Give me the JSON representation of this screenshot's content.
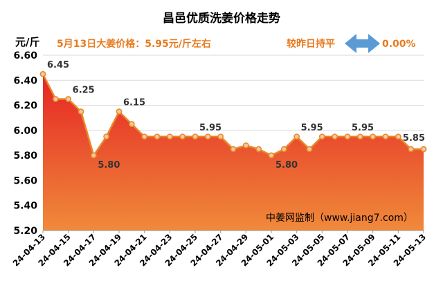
{
  "chart_data": {
    "type": "area",
    "title": "昌邑优质洗姜价格走势",
    "ylabel": "元/斤",
    "ylim": [
      5.2,
      6.6
    ],
    "yticks": [
      "5.20",
      "5.40",
      "5.60",
      "5.80",
      "6.00",
      "6.20",
      "6.40",
      "6.60"
    ],
    "x": [
      "24-04-13",
      "24-04-14",
      "24-04-15",
      "24-04-16",
      "24-04-17",
      "24-04-18",
      "24-04-19",
      "24-04-20",
      "24-04-21",
      "24-04-22",
      "24-04-23",
      "24-04-24",
      "24-04-25",
      "24-04-26",
      "24-04-27",
      "24-04-28",
      "24-04-29",
      "24-04-30",
      "24-05-01",
      "24-05-02",
      "24-05-03",
      "24-05-04",
      "24-05-05",
      "24-05-06",
      "24-05-07",
      "24-05-08",
      "24-05-09",
      "24-05-10",
      "24-05-11",
      "24-05-12",
      "24-05-13"
    ],
    "xtick_labels": [
      "24-04-13",
      "24-04-15",
      "24-04-17",
      "24-04-19",
      "24-04-21",
      "24-04-23",
      "24-04-25",
      "24-04-27",
      "24-04-29",
      "24-05-01",
      "24-05-03",
      "24-05-05",
      "24-05-07",
      "24-05-09",
      "24-05-11",
      "24-05-13"
    ],
    "values": [
      6.45,
      6.25,
      6.25,
      6.15,
      5.8,
      5.95,
      6.15,
      6.05,
      5.95,
      5.95,
      5.95,
      5.95,
      5.95,
      5.95,
      5.95,
      5.85,
      5.88,
      5.85,
      5.8,
      5.85,
      5.95,
      5.85,
      5.95,
      5.95,
      5.95,
      5.95,
      5.95,
      5.95,
      5.95,
      5.85,
      5.85
    ],
    "data_labels": [
      {
        "index": 0,
        "text": "6.45"
      },
      {
        "index": 2,
        "text": "6.25"
      },
      {
        "index": 4,
        "text": "5.80"
      },
      {
        "index": 6,
        "text": "6.15"
      },
      {
        "index": 12,
        "text": "5.95"
      },
      {
        "index": 18,
        "text": "5.80"
      },
      {
        "index": 20,
        "text": "5.95"
      },
      {
        "index": 24,
        "text": "5.95"
      },
      {
        "index": 30,
        "text": "5.85"
      }
    ],
    "grid": true,
    "colors": {
      "line": "#e8882a",
      "fill_top": "#e52424",
      "fill_bottom": "#f08a3a",
      "marker_fill": "#f4c9a0"
    }
  },
  "header": {
    "today_price_label": "5月13日大姜价格：5.95元/斤左右",
    "change_label": "较昨日持平",
    "change_value": "0.00%",
    "change_icon": "double-arrow-icon",
    "arrow_color": "#5b9bd5"
  },
  "source": "中姜网监制（www.jiang7.com）"
}
